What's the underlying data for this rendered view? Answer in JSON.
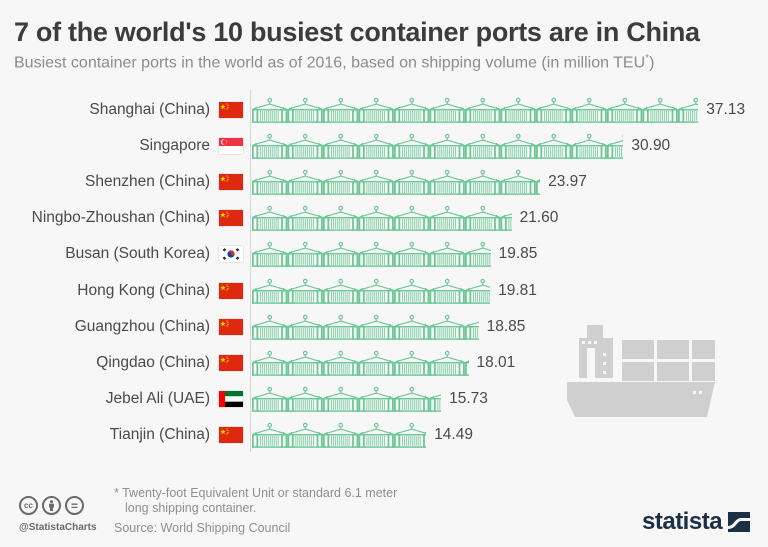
{
  "header": {
    "title": "7 of the world's 10 busiest container ports are in China",
    "subtitle": "Busiest container ports in the world as of 2016, based on shipping volume (in million TEU",
    "subtitle_sup": "*",
    "subtitle_end": ")"
  },
  "colors": {
    "bar_icon": "#6cc796",
    "ship": "#cfcfcf",
    "logo": "#1c2f45",
    "china_red": "#de2910",
    "china_star": "#ffde00"
  },
  "chart_data": {
    "type": "bar",
    "orientation": "horizontal",
    "title": "7 of the world's 10 busiest container ports are in China",
    "subtitle": "Busiest container ports in the world as of 2016, based on shipping volume (in million TEU*)",
    "xlabel": "",
    "ylabel": "",
    "unit": "million TEU",
    "grid": false,
    "legend": null,
    "categories": [
      "Shanghai (China)",
      "Singapore",
      "Shenzhen (China)",
      "Ningbo-Zhoushan (China)",
      "Busan (South Korea)",
      "Hong Kong (China)",
      "Guangzhou (China)",
      "Qingdao (China)",
      "Jebel Ali (UAE)",
      "Tianjin (China)"
    ],
    "values": [
      37.13,
      30.9,
      23.97,
      21.6,
      19.85,
      19.81,
      18.85,
      18.01,
      15.73,
      14.49
    ],
    "value_labels": [
      "37.13",
      "30.90",
      "23.97",
      "21.60",
      "19.85",
      "19.81",
      "18.85",
      "18.01",
      "15.73",
      "14.49"
    ],
    "flags": [
      "china",
      "singapore",
      "china",
      "china",
      "south-korea",
      "china",
      "china",
      "china",
      "uae",
      "china"
    ],
    "bar_style": "pictogram: repeated container-crane icons"
  },
  "footer": {
    "footnote_line1": "* Twenty-foot Equivalent Unit or standard 6.1 meter",
    "footnote_line2": "long shipping container.",
    "source": "Source: World Shipping Council",
    "handle": "@StatistaCharts",
    "cc_icons": [
      "cc",
      "by",
      "nd"
    ],
    "cc_labels": [
      "cc",
      "",
      "="
    ],
    "logo_text": "statista"
  }
}
